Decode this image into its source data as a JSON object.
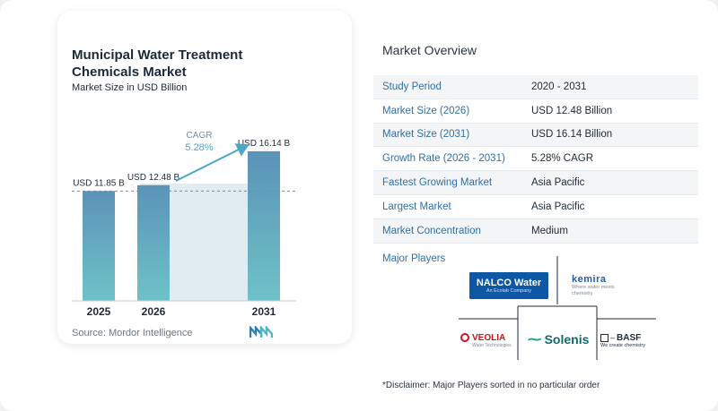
{
  "chart": {
    "title": "Municipal Water Treatment Chemicals Market",
    "subtitle": "Market Size in USD Billion",
    "source": "Source:  Mordor Intelligence",
    "cagr_label": "CAGR",
    "cagr_value": "5.28%"
  },
  "chart_data": {
    "type": "bar",
    "categories": [
      "2025",
      "2026",
      "2031"
    ],
    "values": [
      11.85,
      12.48,
      16.14
    ],
    "data_labels": [
      "USD 11.85 B",
      "USD 12.48 B",
      "USD 16.14 B"
    ],
    "ylim": [
      0,
      17
    ],
    "grid": false,
    "reference_line": 11.85,
    "annotation": "CAGR 5.28%"
  },
  "overview": {
    "title": "Market Overview",
    "rows": [
      {
        "label": "Study Period",
        "value": "2020 - 2031"
      },
      {
        "label": "Market Size (2026)",
        "value": "USD 12.48 Billion"
      },
      {
        "label": "Market Size (2031)",
        "value": "USD 16.14 Billion"
      },
      {
        "label": "Growth Rate (2026 - 2031)",
        "value": "5.28% CAGR"
      },
      {
        "label": "Fastest Growing Market",
        "value": "Asia Pacific"
      },
      {
        "label": "Largest Market",
        "value": "Asia Pacific"
      },
      {
        "label": "Market Concentration",
        "value": "Medium"
      }
    ]
  },
  "players": {
    "title": "Major Players",
    "logos": [
      {
        "name": "NALCO Water",
        "sub": "An Ecolab Company"
      },
      {
        "name": "kemira",
        "sub": "Where water meets chemistry"
      },
      {
        "name": "VEOLIA",
        "sub": "Water Technologies"
      },
      {
        "name": "Solenis"
      },
      {
        "name": "BASF",
        "sub": "We create chemistry"
      }
    ]
  },
  "disclaimer": "*Disclaimer: Major Players sorted in no particular order",
  "colors": {
    "bar_top": "#5b93b8",
    "bar_bottom": "#6fc2c8",
    "accent": "#2f6fa5",
    "cagr": "#4aa8c8"
  }
}
